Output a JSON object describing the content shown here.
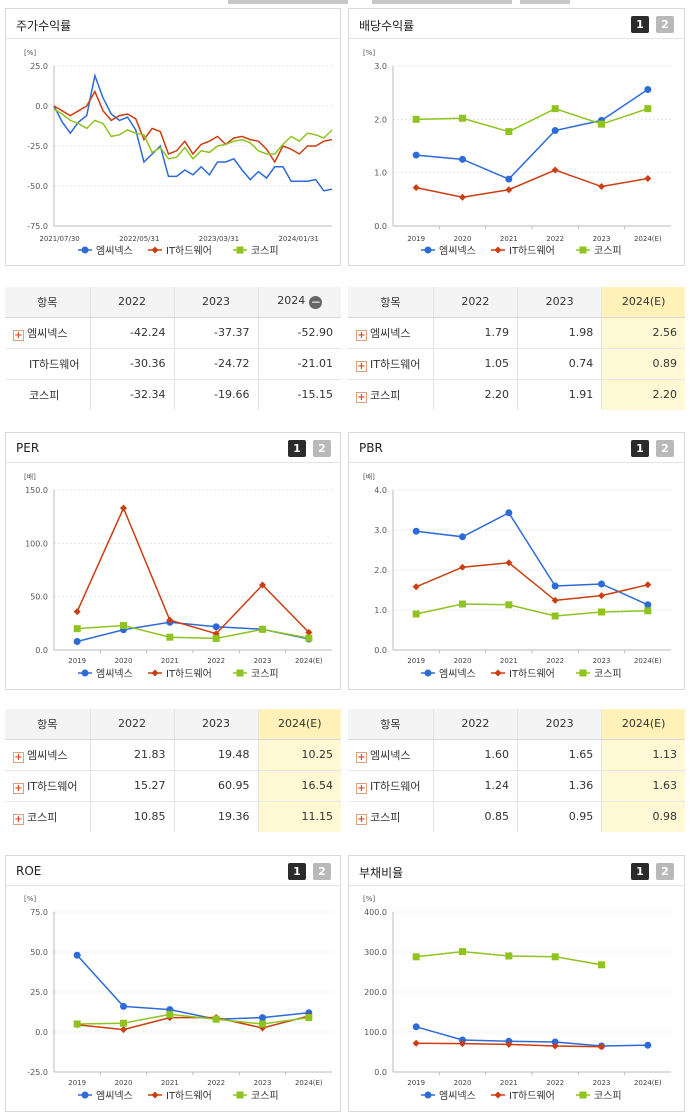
{
  "legend": [
    "엠씨넥스",
    "IT하드웨어",
    "코스피"
  ],
  "colors": [
    "#2d6bd8",
    "#cc3d12",
    "#8fc31f"
  ],
  "panels": {
    "return": {
      "title": "주가수익률"
    },
    "dividend": {
      "title": "배당수익률"
    },
    "per": {
      "title": "PER"
    },
    "pbr": {
      "title": "PBR"
    },
    "roe": {
      "title": "ROE"
    },
    "debt": {
      "title": "부채비율"
    }
  },
  "pager": [
    "1",
    "2"
  ],
  "tables": {
    "return": {
      "headers": [
        "항목",
        "2022",
        "2023",
        "2024"
      ],
      "rows": [
        {
          "name": "엠씨넥스",
          "plus": true,
          "values": [
            "-42.24",
            "-37.37",
            "-52.90"
          ]
        },
        {
          "name": "IT하드웨어",
          "plus": false,
          "values": [
            "-30.36",
            "-24.72",
            "-21.01"
          ]
        },
        {
          "name": "코스피",
          "plus": false,
          "values": [
            "-32.34",
            "-19.66",
            "-15.15"
          ]
        }
      ]
    },
    "dividend": {
      "headers": [
        "항목",
        "2022",
        "2023",
        "2024(E)"
      ],
      "rows": [
        {
          "name": "엠씨넥스",
          "plus": true,
          "values": [
            "1.79",
            "1.98",
            "2.56"
          ]
        },
        {
          "name": "IT하드웨어",
          "plus": true,
          "values": [
            "1.05",
            "0.74",
            "0.89"
          ]
        },
        {
          "name": "코스피",
          "plus": true,
          "values": [
            "2.20",
            "1.91",
            "2.20"
          ]
        }
      ]
    },
    "per": {
      "headers": [
        "항목",
        "2022",
        "2023",
        "2024(E)"
      ],
      "rows": [
        {
          "name": "엠씨넥스",
          "plus": true,
          "values": [
            "21.83",
            "19.48",
            "10.25"
          ]
        },
        {
          "name": "IT하드웨어",
          "plus": true,
          "values": [
            "15.27",
            "60.95",
            "16.54"
          ]
        },
        {
          "name": "코스피",
          "plus": true,
          "values": [
            "10.85",
            "19.36",
            "11.15"
          ]
        }
      ]
    },
    "pbr": {
      "headers": [
        "항목",
        "2022",
        "2023",
        "2024(E)"
      ],
      "rows": [
        {
          "name": "엠씨넥스",
          "plus": true,
          "values": [
            "1.60",
            "1.65",
            "1.13"
          ]
        },
        {
          "name": "IT하드웨어",
          "plus": true,
          "values": [
            "1.24",
            "1.36",
            "1.63"
          ]
        },
        {
          "name": "코스피",
          "plus": true,
          "values": [
            "0.85",
            "0.95",
            "0.98"
          ]
        }
      ]
    }
  },
  "chart_data": [
    {
      "id": "return",
      "type": "line",
      "title": "주가수익률",
      "unit": "[%]",
      "ylim": [
        -75,
        25
      ],
      "yticks": [
        "25.0",
        "0.0",
        "-25.0",
        "-50.0",
        "-75.0"
      ],
      "xticks": [
        "2021/07/30",
        "2022/05/31",
        "2023/03/31",
        "2024/01/31"
      ],
      "series": [
        {
          "name": "엠씨넥스",
          "values": [
            0,
            -10,
            -17,
            -10,
            -6,
            19,
            5,
            -5,
            -9,
            -7,
            -15,
            -35,
            -30,
            -25,
            -44,
            -44,
            -40,
            -43,
            -38,
            -43,
            -35,
            -35,
            -33,
            -40,
            -46,
            -41,
            -45,
            -38,
            -38,
            -47,
            -47,
            -47,
            -46,
            -53,
            -52
          ]
        },
        {
          "name": "IT하드웨어",
          "values": [
            0,
            -3,
            -6,
            -3,
            0,
            9,
            -3,
            -9,
            -6,
            -5,
            -8,
            -21,
            -14,
            -16,
            -30,
            -28,
            -22,
            -30,
            -24,
            -22,
            -19,
            -24,
            -20,
            -19,
            -21,
            -22,
            -27,
            -35,
            -25,
            -27,
            -30,
            -25,
            -25,
            -22,
            -21
          ]
        },
        {
          "name": "코스피",
          "values": [
            -2,
            -5,
            -9,
            -11,
            -14,
            -9,
            -11,
            -19,
            -18,
            -15,
            -17,
            -18,
            -29,
            -26,
            -33,
            -32,
            -26,
            -33,
            -28,
            -29,
            -25,
            -24,
            -22,
            -21,
            -23,
            -28,
            -30,
            -30,
            -24,
            -19,
            -22,
            -17,
            -18,
            -20,
            -15
          ]
        }
      ]
    },
    {
      "id": "dividend",
      "type": "line",
      "unit": "[%]",
      "ylim": [
        0,
        3
      ],
      "yticks": [
        "3.0",
        "2.0",
        "1.0",
        "0.0"
      ],
      "categories": [
        "2019",
        "2020",
        "2021",
        "2022",
        "2023",
        "2024(E)"
      ],
      "series": [
        {
          "name": "엠씨넥스",
          "values": [
            1.33,
            1.25,
            0.88,
            1.79,
            1.98,
            2.56
          ]
        },
        {
          "name": "IT하드웨어",
          "values": [
            0.72,
            0.54,
            0.68,
            1.05,
            0.74,
            0.89
          ]
        },
        {
          "name": "코스피",
          "values": [
            2.0,
            2.02,
            1.77,
            2.2,
            1.91,
            2.2
          ]
        }
      ]
    },
    {
      "id": "per",
      "type": "line",
      "unit": "[배]",
      "ylim": [
        0,
        150
      ],
      "yticks": [
        "150.0",
        "100.0",
        "50.0",
        "0.0"
      ],
      "categories": [
        "2019",
        "2020",
        "2021",
        "2022",
        "2023",
        "2024(E)"
      ],
      "series": [
        {
          "name": "엠씨넥스",
          "values": [
            8,
            19,
            26,
            21.83,
            19.48,
            10.25
          ]
        },
        {
          "name": "IT하드웨어",
          "values": [
            36,
            133,
            28,
            15.27,
            60.95,
            16.54
          ]
        },
        {
          "name": "코스피",
          "values": [
            20,
            23,
            12,
            10.85,
            19.36,
            11.15
          ]
        }
      ]
    },
    {
      "id": "pbr",
      "type": "line",
      "unit": "[배]",
      "ylim": [
        0,
        4
      ],
      "yticks": [
        "4.0",
        "3.0",
        "2.0",
        "1.0",
        "0.0"
      ],
      "categories": [
        "2019",
        "2020",
        "2021",
        "2022",
        "2023",
        "2024(E)"
      ],
      "series": [
        {
          "name": "엠씨넥스",
          "values": [
            2.97,
            2.83,
            3.43,
            1.6,
            1.65,
            1.13
          ]
        },
        {
          "name": "IT하드웨어",
          "values": [
            1.58,
            2.07,
            2.18,
            1.24,
            1.36,
            1.63
          ]
        },
        {
          "name": "코스피",
          "values": [
            0.9,
            1.15,
            1.13,
            0.85,
            0.95,
            0.98
          ]
        }
      ]
    },
    {
      "id": "roe",
      "type": "line",
      "unit": "[%]",
      "ylim": [
        -25,
        75
      ],
      "yticks": [
        "75.0",
        "50.0",
        "25.0",
        "0.0",
        "-25.0"
      ],
      "categories": [
        "2019",
        "2020",
        "2021",
        "2022",
        "2023",
        "2024(E)"
      ],
      "series": [
        {
          "name": "엠씨넥스",
          "values": [
            48,
            16,
            14,
            8,
            9,
            12
          ]
        },
        {
          "name": "IT하드웨어",
          "values": [
            4.5,
            1.5,
            9,
            9,
            2.5,
            10
          ]
        },
        {
          "name": "코스피",
          "values": [
            5,
            5.5,
            11,
            8,
            5,
            9
          ]
        }
      ]
    },
    {
      "id": "debt",
      "type": "line",
      "unit": "[%]",
      "ylim": [
        0,
        400
      ],
      "yticks": [
        "400.0",
        "300.0",
        "200.0",
        "100.0",
        "0.0"
      ],
      "categories": [
        "2019",
        "2020",
        "2021",
        "2022",
        "2023",
        "2024(E)"
      ],
      "series": [
        {
          "name": "엠씨넥스",
          "values": [
            113,
            80,
            77,
            75,
            65,
            67
          ]
        },
        {
          "name": "IT하드웨어",
          "values": [
            72,
            71,
            69,
            65,
            63,
            null
          ]
        },
        {
          "name": "코스피",
          "values": [
            288,
            301,
            290,
            288,
            268,
            null
          ]
        }
      ]
    }
  ]
}
